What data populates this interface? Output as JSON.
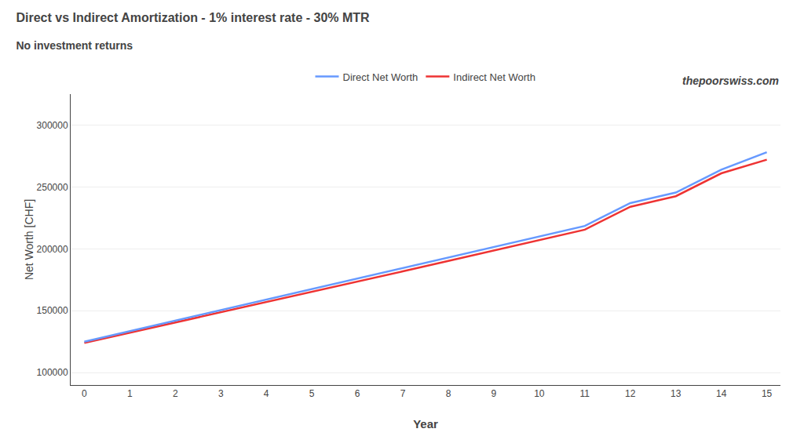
{
  "chart_data": {
    "type": "line",
    "title": "Direct vs Indirect Amortization - 1% interest rate - 30% MTR",
    "subtitle": "No investment returns",
    "annotations": [
      "thepoorswiss.com"
    ],
    "x_label": "Year",
    "y_label": "Net Worth [CHF]",
    "x": [
      0,
      1,
      2,
      3,
      4,
      5,
      6,
      7,
      8,
      9,
      10,
      11,
      12,
      13,
      14,
      15
    ],
    "series": [
      {
        "name": "Indirect Net Worth",
        "color": "#ee3333",
        "values": [
          124000,
          132200,
          140400,
          148600,
          156900,
          165200,
          173500,
          181800,
          190200,
          198600,
          207000,
          215500,
          234000,
          242500,
          261000,
          272000
        ]
      },
      {
        "name": "Direct Net Worth",
        "color": "#6699ff",
        "values": [
          125000,
          133500,
          142000,
          150500,
          159000,
          167500,
          176000,
          184500,
          193000,
          201500,
          210000,
          218500,
          237000,
          245500,
          264000,
          278000
        ]
      }
    ],
    "xlim": [
      -0.3,
      15.3
    ],
    "xticks": [
      0,
      1,
      2,
      3,
      4,
      5,
      6,
      7,
      8,
      9,
      10,
      11,
      12,
      13,
      14,
      15
    ],
    "ylim": [
      90000,
      325000
    ],
    "yticks": [
      100000,
      150000,
      200000,
      250000,
      300000
    ],
    "grid": "y",
    "legend": "top"
  }
}
